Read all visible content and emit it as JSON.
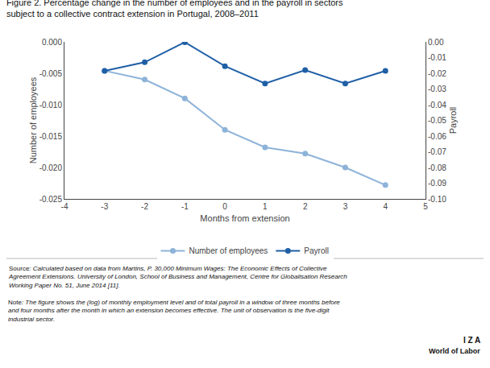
{
  "chart_data": {
    "type": "line",
    "title": "Figure 2. Percentage change in the number of employees and in the payroll in sectors",
    "subtitle": "subject to a collective contract extension in Portugal, 2008–2011",
    "xlabel": "Months from extension",
    "ylabel": "Number of employees",
    "y2label": "Payroll",
    "x": [
      -3,
      -2,
      -1,
      0,
      1,
      2,
      3,
      4
    ],
    "series": [
      {
        "name": "Number of employees",
        "color": "#8db3d9",
        "marker": "circle",
        "values": [
          -0.0046,
          -0.006,
          -0.009,
          -0.014,
          -0.0168,
          -0.0178,
          -0.02,
          -0.0228
        ]
      },
      {
        "name": "Payroll",
        "color": "#1f5fa6",
        "marker": "circle",
        "axis": "y2",
        "values": [
          -0.0185,
          -0.013,
          -0.0002,
          -0.0155,
          -0.0265,
          -0.018,
          -0.0265,
          -0.0185
        ]
      }
    ],
    "xlim": [
      -4,
      5
    ],
    "xticks": [
      -4,
      -3,
      -2,
      -1,
      0,
      1,
      2,
      3,
      4,
      5
    ],
    "ylim": [
      -0.025,
      0
    ],
    "yticks": [
      {
        "value": 0,
        "label": "0.000"
      },
      -0.005,
      {
        "value": -0.01,
        "label": "-0.010"
      },
      -0.015,
      {
        "value": -0.02,
        "label": "-0.020"
      },
      -0.025
    ],
    "y2lim": [
      -0.1,
      0
    ],
    "y2ticks": [
      {
        "value": 0,
        "label": "0.00"
      },
      -0.01,
      -0.02,
      -0.03,
      -0.04,
      -0.05,
      -0.06,
      -0.07,
      -0.08,
      -0.09,
      {
        "value": -0.1,
        "label": "-0.10"
      }
    ],
    "grid": false,
    "legend": "bottom",
    "annotations": [
      "Source: Calculated based on data from Martins, P. 30,000 Minimum Wages: The Economic Effects of Collective\nAgreement Extensions. University of London, School of Business and Management, Centre for Globalisation Research\nWorking Paper No. 51, June 2014 [11].",
      "Note: The figure shows the (log) of monthly employment level and of total payroll in a window of three months before\nand four months after the month in which an extension becomes effective. The unit of observation is the five-digit\nindustrial sector.",
      "I Z A",
      "World of Labor"
    ]
  }
}
